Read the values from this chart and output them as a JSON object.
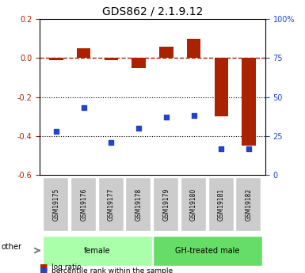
{
  "title": "GDS862 / 2.1.9.12",
  "samples": [
    "GSM19175",
    "GSM19176",
    "GSM19177",
    "GSM19178",
    "GSM19179",
    "GSM19180",
    "GSM19181",
    "GSM19182"
  ],
  "log_ratio": [
    -0.01,
    0.05,
    -0.01,
    -0.05,
    0.06,
    0.1,
    -0.3,
    -0.45
  ],
  "percentile_rank": [
    28,
    43,
    21,
    30,
    37,
    38,
    17,
    17
  ],
  "groups": [
    {
      "label": "female",
      "color": "#aaffaa",
      "start": 0,
      "end": 4
    },
    {
      "label": "GH-treated male",
      "color": "#66dd66",
      "start": 4,
      "end": 8
    }
  ],
  "ylim_left": [
    -0.6,
    0.2
  ],
  "ylim_right": [
    0,
    100
  ],
  "yticks_left": [
    -0.6,
    -0.4,
    -0.2,
    0.0,
    0.2
  ],
  "yticks_right": [
    0,
    25,
    50,
    75,
    100
  ],
  "bar_color": "#aa2200",
  "dot_color": "#2244cc",
  "hline_y": 0,
  "dotted_lines": [
    -0.2,
    -0.4
  ],
  "legend_bar_label": "log ratio",
  "legend_dot_label": "percentile rank within the sample",
  "other_label": "other",
  "bar_width": 0.5
}
